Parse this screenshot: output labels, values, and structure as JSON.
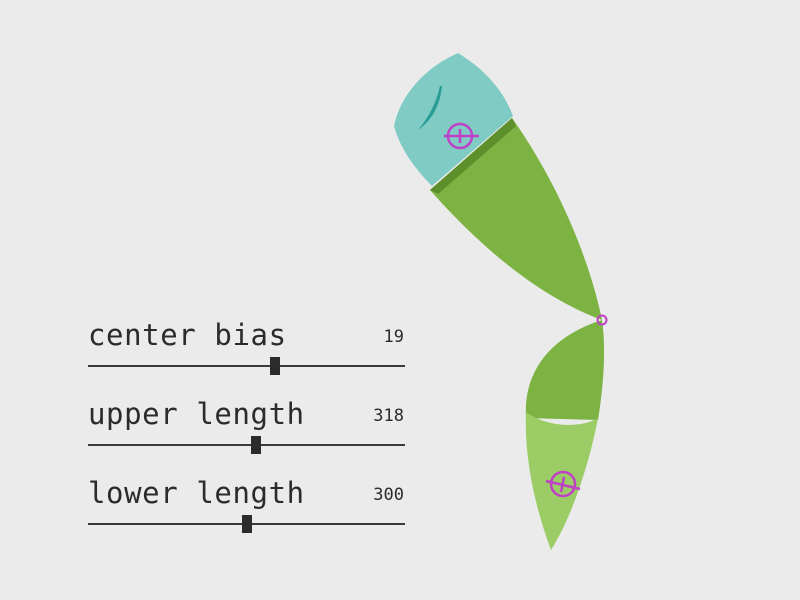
{
  "controls": [
    {
      "label": "center bias",
      "value": "19",
      "level": 0.59
    },
    {
      "label": "upper length",
      "value": "318",
      "level": 0.53
    },
    {
      "label": "lower length",
      "value": "300",
      "level": 0.5
    }
  ],
  "colors": {
    "background": "#ebebeb",
    "cap": "#80cbc3",
    "cap_mark": "#2a9d95",
    "upper_limb": "#7cb342",
    "upper_shade": "#5d8f2a",
    "lower_limb": "#9ccc65",
    "handle": "#c040c8",
    "ink": "#2b2b2b"
  },
  "icons": {
    "upper_handle": "crosshair-handle-icon",
    "lower_handle": "crosshair-handle-icon",
    "joint": "joint-circle-icon"
  }
}
